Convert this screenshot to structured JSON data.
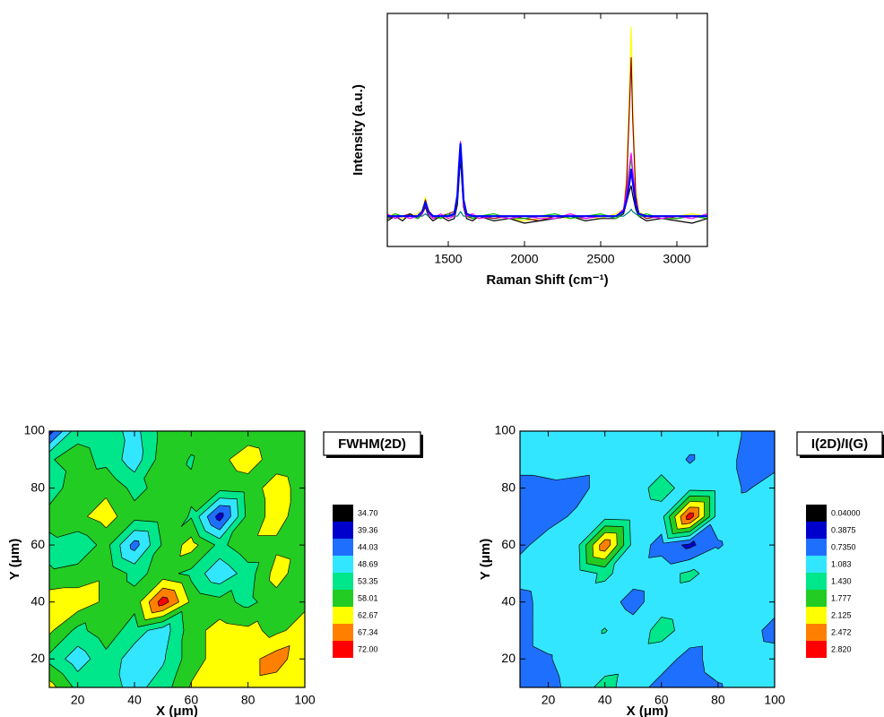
{
  "chart_data": [
    {
      "type": "line",
      "xlabel": "Raman Shift (cm⁻¹)",
      "ylabel": "Intensity (a.u.)",
      "xlim": [
        1100,
        3200
      ],
      "xticks": [
        1500,
        2000,
        2500,
        3000
      ],
      "ylim": [
        0,
        100
      ],
      "x": [
        1100,
        1150,
        1200,
        1250,
        1300,
        1330,
        1350,
        1370,
        1400,
        1450,
        1500,
        1540,
        1560,
        1570,
        1580,
        1590,
        1600,
        1620,
        1660,
        1700,
        1800,
        1900,
        2000,
        2100,
        2200,
        2300,
        2400,
        2500,
        2600,
        2650,
        2670,
        2690,
        2700,
        2710,
        2730,
        2750,
        2800,
        2900,
        3000,
        3100,
        3200
      ],
      "series": [
        {
          "color": "#ffff00",
          "values": [
            13,
            14,
            12,
            13,
            14,
            16,
            21,
            16,
            13,
            12,
            13,
            14,
            22,
            33,
            43,
            32,
            20,
            14,
            13,
            12,
            13,
            12,
            11,
            12,
            13,
            12,
            13,
            12,
            14,
            16,
            30,
            70,
            94,
            62,
            24,
            15,
            13,
            12,
            13,
            14,
            13
          ]
        },
        {
          "color": "#8b0000",
          "values": [
            12,
            13,
            13,
            14,
            12,
            15,
            20,
            15,
            12,
            13,
            14,
            15,
            21,
            32,
            42,
            31,
            19,
            13,
            12,
            13,
            12,
            13,
            12,
            11,
            13,
            13,
            12,
            13,
            13,
            15,
            27,
            62,
            81,
            55,
            22,
            14,
            12,
            13,
            12,
            13,
            12
          ]
        },
        {
          "color": "#000000",
          "values": [
            11,
            13,
            11,
            14,
            12,
            14,
            17,
            13,
            11,
            13,
            11,
            12,
            18,
            28,
            38,
            27,
            17,
            12,
            11,
            13,
            11,
            12,
            10,
            11,
            12,
            13,
            11,
            12,
            12,
            14,
            19,
            24,
            26,
            22,
            16,
            13,
            11,
            12,
            11,
            10,
            12
          ]
        },
        {
          "color": "#008080",
          "values": [
            13,
            13,
            13,
            13,
            13,
            13,
            14,
            13,
            13,
            13,
            13,
            13,
            13,
            14,
            15,
            14,
            13,
            13,
            13,
            13,
            13,
            13,
            13,
            13,
            13,
            13,
            13,
            13,
            13,
            13,
            14,
            15,
            16,
            15,
            14,
            13,
            13,
            13,
            13,
            13,
            13
          ]
        },
        {
          "color": "#00c000",
          "values": [
            12,
            14,
            13,
            13,
            12,
            15,
            19,
            14,
            13,
            12,
            14,
            13,
            20,
            31,
            41,
            30,
            19,
            14,
            12,
            13,
            14,
            12,
            12,
            13,
            14,
            12,
            13,
            14,
            12,
            15,
            23,
            33,
            38,
            31,
            19,
            13,
            14,
            12,
            12,
            13,
            12
          ]
        },
        {
          "color": "#ff00ff",
          "values": [
            14,
            12,
            13,
            12,
            13,
            14,
            18,
            14,
            12,
            14,
            12,
            13,
            21,
            33,
            45,
            31,
            18,
            13,
            14,
            12,
            13,
            12,
            13,
            12,
            12,
            14,
            12,
            13,
            13,
            16,
            24,
            35,
            40,
            33,
            20,
            14,
            13,
            12,
            13,
            12,
            14
          ]
        },
        {
          "color": "#0000ff",
          "values": [
            13,
            13,
            13,
            13,
            13,
            15,
            19,
            15,
            13,
            13,
            13,
            14,
            22,
            34,
            44,
            33,
            20,
            14,
            13,
            13,
            13,
            13,
            13,
            13,
            13,
            13,
            13,
            13,
            13,
            15,
            20,
            28,
            33,
            28,
            18,
            14,
            13,
            13,
            13,
            13,
            13
          ]
        }
      ]
    },
    {
      "type": "contour",
      "legend_title": "FWHM(2D)",
      "xlabel": "X (μm)",
      "ylabel": "Y (μm)",
      "xlim": [
        10,
        100
      ],
      "ylim": [
        10,
        100
      ],
      "xticks": [
        20,
        40,
        60,
        80,
        100
      ],
      "yticks": [
        20,
        40,
        60,
        80,
        100
      ],
      "x": [
        10,
        20,
        30,
        40,
        50,
        60,
        70,
        80,
        90,
        100
      ],
      "y": [
        10,
        20,
        30,
        40,
        50,
        60,
        70,
        80,
        90,
        100
      ],
      "z": [
        [
          60,
          52,
          51,
          47,
          51,
          58.5,
          60,
          61,
          60,
          59
        ],
        [
          52,
          46,
          52,
          46,
          48,
          56,
          60,
          61,
          65,
          59
        ],
        [
          59,
          52,
          56,
          51,
          46,
          56,
          60,
          59,
          57,
          60
        ],
        [
          61,
          61,
          57,
          55,
          70,
          57,
          55,
          52,
          56,
          57
        ],
        [
          54,
          55,
          57,
          52,
          55,
          52,
          45,
          51,
          60,
          55
        ],
        [
          52,
          50,
          55,
          42,
          54,
          60,
          52,
          57,
          57,
          56
        ],
        [
          55,
          57,
          60,
          55,
          56,
          53,
          37,
          55,
          60,
          55
        ],
        [
          51,
          56,
          57,
          52,
          55,
          54,
          55,
          56,
          60,
          56
        ],
        [
          53,
          55,
          52,
          46,
          56,
          53,
          57,
          60,
          56,
          55
        ],
        [
          37,
          52,
          51,
          47,
          55,
          55,
          56,
          56,
          55,
          54
        ]
      ],
      "levels": [
        {
          "value": 34.7,
          "label": "34.70"
        },
        39.36,
        44.03,
        48.69,
        53.35,
        58.01,
        62.67,
        67.34,
        {
          "value": 72,
          "label": "72.00"
        }
      ],
      "colors": [
        "#000000",
        "#0000cc",
        "#1f6fff",
        "#33e6ff",
        "#00e68a",
        "#22cc22",
        "#ffff00",
        "#ff8000",
        "#ff0000"
      ]
    },
    {
      "type": "contour",
      "legend_title": "I(2D)/I(G)",
      "xlabel": "X (μm)",
      "ylabel": "Y (μm)",
      "xlim": [
        10,
        100
      ],
      "ylim": [
        10,
        100
      ],
      "xticks": [
        20,
        40,
        60,
        80,
        100
      ],
      "yticks": [
        20,
        40,
        60,
        80,
        100
      ],
      "x": [
        10,
        20,
        30,
        40,
        50,
        60,
        70,
        80,
        90,
        100
      ],
      "y": [
        10,
        20,
        30,
        40,
        50,
        60,
        70,
        80,
        90,
        100
      ],
      "z": [
        [
          0.5,
          0.6,
          0.9,
          1.2,
          0.9,
          0.6,
          0.55,
          0.7,
          0.9,
          0.9
        ],
        [
          0.6,
          0.7,
          0.95,
          0.9,
          0.95,
          0.9,
          0.6,
          0.9,
          0.95,
          0.9
        ],
        [
          0.6,
          0.9,
          0.95,
          1.1,
          0.9,
          1.2,
          0.95,
          0.9,
          0.9,
          0.6
        ],
        [
          0.6,
          0.9,
          0.95,
          0.9,
          0.6,
          0.95,
          0.9,
          0.95,
          0.9,
          0.9
        ],
        [
          0.9,
          0.95,
          0.9,
          1.15,
          0.9,
          0.95,
          1.15,
          0.95,
          0.9,
          0.9
        ],
        [
          0.65,
          0.9,
          0.95,
          2.4,
          0.95,
          0.6,
          0.3,
          0.7,
          0.9,
          0.9
        ],
        [
          0.6,
          0.6,
          0.8,
          0.95,
          0.9,
          0.95,
          2.7,
          0.9,
          0.95,
          0.9
        ],
        [
          0.6,
          0.65,
          0.6,
          0.9,
          0.95,
          1.2,
          0.95,
          0.9,
          0.7,
          0.9
        ],
        [
          0.9,
          0.9,
          0.95,
          0.9,
          0.9,
          0.95,
          0.7,
          0.9,
          0.65,
          0.6
        ],
        [
          0.9,
          0.9,
          0.95,
          0.9,
          0.9,
          0.9,
          0.9,
          0.9,
          0.7,
          0.6
        ]
      ],
      "levels": [
        {
          "value": 0.04,
          "label": "0.04000"
        },
        0.3875,
        {
          "value": 0.735,
          "label": "0.7350"
        },
        1.083,
        {
          "value": 1.43,
          "label": "1.430"
        },
        1.777,
        2.125,
        2.472,
        {
          "value": 2.82,
          "label": "2.820"
        }
      ],
      "colors": [
        "#000000",
        "#0000cc",
        "#1f6fff",
        "#33e6ff",
        "#00e68a",
        "#22cc22",
        "#ffff00",
        "#ff8000",
        "#ff0000"
      ]
    }
  ]
}
